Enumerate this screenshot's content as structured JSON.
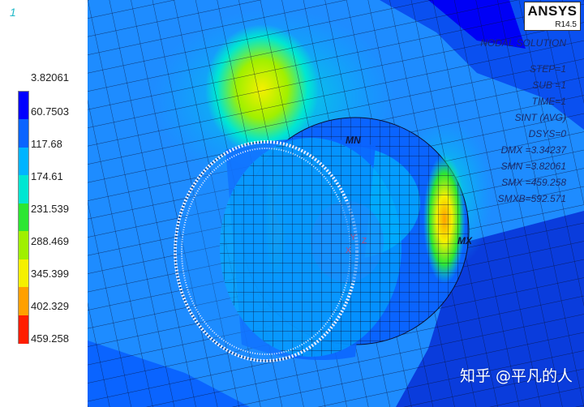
{
  "window": {
    "number": "1"
  },
  "legend": {
    "values": [
      "3.82061",
      "60.7503",
      "117.68",
      "174.61",
      "231.539",
      "288.469",
      "345.399",
      "402.329",
      "459.258"
    ],
    "colors": [
      "#0000ff",
      "#0a64ff",
      "#00b4ff",
      "#00e6d2",
      "#2de632",
      "#a0f000",
      "#f5f000",
      "#ffa000",
      "#ff1e00"
    ]
  },
  "branding": {
    "name": "ANSYS",
    "release": "R14.5"
  },
  "solution_info": {
    "title": "NODAL SOLUTION",
    "step": "STEP=1",
    "sub": "SUB =1",
    "time": "TIME=1",
    "result": "SINT     (AVG)",
    "dsys": "DSYS=0",
    "dmx": "DMX =3.34237",
    "smn": "SMN =3.82061",
    "smx": "SMX =459.258",
    "smxb": "SMXB=592.571"
  },
  "markers": {
    "min": "MN",
    "max": "MX"
  },
  "triad": {
    "x": "X",
    "y": "Y",
    "z": "Z"
  },
  "watermark": "知乎 @平凡的人"
}
